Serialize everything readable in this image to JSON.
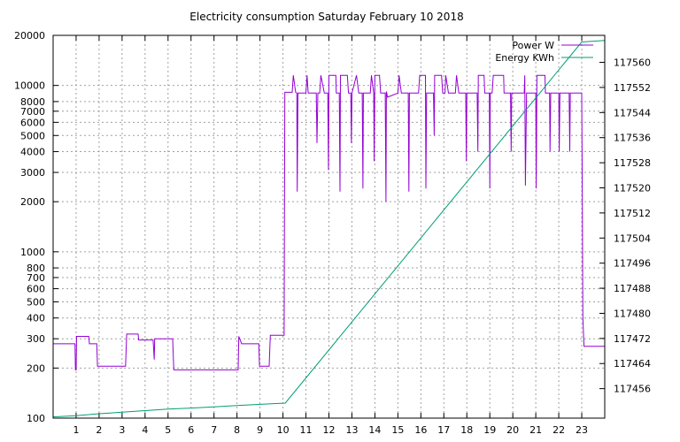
{
  "chart_data": {
    "type": "line",
    "title": "Electricity consumption Saturday February 10 2018",
    "legend": {
      "placement": "top-right"
    },
    "x_axis": {
      "range": [
        0,
        24
      ],
      "ticks": [
        1,
        2,
        3,
        4,
        5,
        6,
        7,
        8,
        9,
        10,
        11,
        12,
        13,
        14,
        15,
        16,
        17,
        18,
        19,
        20,
        21,
        22,
        23
      ],
      "grid": true
    },
    "y_axis_left": {
      "scale": "log",
      "range": [
        100,
        20000
      ],
      "ticks": [
        100,
        200,
        300,
        400,
        500,
        600,
        700,
        800,
        1000,
        2000,
        3000,
        4000,
        5000,
        6000,
        7000,
        8000,
        10000,
        20000
      ],
      "grid": true
    },
    "y_axis_right": {
      "scale": "linear",
      "range": [
        117446.6,
        117568.6
      ],
      "ticks": [
        117456,
        117464,
        117472,
        117480,
        117488,
        117496,
        117504,
        117512,
        117520,
        117528,
        117536,
        117544,
        117552,
        117560
      ]
    },
    "series": [
      {
        "name": "Power W",
        "axis": "left",
        "color": "#9400d3",
        "points": [
          [
            0,
            280
          ],
          [
            0.95,
            280
          ],
          [
            0.97,
            195
          ],
          [
            1.0,
            195
          ],
          [
            1.02,
            310
          ],
          [
            1.55,
            310
          ],
          [
            1.58,
            280
          ],
          [
            1.9,
            280
          ],
          [
            1.93,
            205
          ],
          [
            3.15,
            205
          ],
          [
            3.2,
            320
          ],
          [
            3.7,
            320
          ],
          [
            3.72,
            295
          ],
          [
            4.35,
            295
          ],
          [
            4.4,
            225
          ],
          [
            4.42,
            300
          ],
          [
            5.2,
            300
          ],
          [
            5.25,
            195
          ],
          [
            8.05,
            195
          ],
          [
            8.08,
            310
          ],
          [
            8.2,
            280
          ],
          [
            8.95,
            280
          ],
          [
            8.98,
            205
          ],
          [
            9.4,
            205
          ],
          [
            9.45,
            315
          ],
          [
            10.05,
            315
          ],
          [
            10.08,
            9100
          ],
          [
            10.4,
            9100
          ],
          [
            10.45,
            11500
          ],
          [
            10.55,
            9100
          ],
          [
            10.6,
            9000
          ],
          [
            10.62,
            2300
          ],
          [
            10.65,
            9000
          ],
          [
            11.0,
            9000
          ],
          [
            11.05,
            11500
          ],
          [
            11.1,
            9000
          ],
          [
            11.45,
            9000
          ],
          [
            11.48,
            4500
          ],
          [
            11.52,
            9000
          ],
          [
            11.6,
            9000
          ],
          [
            11.65,
            11500
          ],
          [
            11.8,
            9000
          ],
          [
            11.95,
            9000
          ],
          [
            11.98,
            3100
          ],
          [
            12.0,
            11500
          ],
          [
            12.3,
            11500
          ],
          [
            12.32,
            9000
          ],
          [
            12.45,
            9000
          ],
          [
            12.48,
            2300
          ],
          [
            12.5,
            11500
          ],
          [
            12.8,
            11500
          ],
          [
            12.85,
            9000
          ],
          [
            12.95,
            9000
          ],
          [
            12.98,
            4500
          ],
          [
            13.0,
            9000
          ],
          [
            13.2,
            11500
          ],
          [
            13.3,
            9000
          ],
          [
            13.45,
            9000
          ],
          [
            13.48,
            2400
          ],
          [
            13.5,
            9000
          ],
          [
            13.8,
            9000
          ],
          [
            13.85,
            11500
          ],
          [
            13.95,
            9000
          ],
          [
            13.97,
            3500
          ],
          [
            14.0,
            11500
          ],
          [
            14.2,
            11500
          ],
          [
            14.25,
            9000
          ],
          [
            14.45,
            9000
          ],
          [
            14.48,
            2000
          ],
          [
            14.5,
            9200
          ],
          [
            14.55,
            8500
          ],
          [
            15.0,
            9000
          ],
          [
            15.05,
            11500
          ],
          [
            15.15,
            9000
          ],
          [
            15.45,
            9000
          ],
          [
            15.48,
            2300
          ],
          [
            15.5,
            9000
          ],
          [
            15.9,
            9000
          ],
          [
            15.95,
            11500
          ],
          [
            16.2,
            11500
          ],
          [
            16.22,
            2400
          ],
          [
            16.25,
            9000
          ],
          [
            16.55,
            9000
          ],
          [
            16.58,
            5000
          ],
          [
            16.6,
            11500
          ],
          [
            16.9,
            11500
          ],
          [
            16.95,
            9000
          ],
          [
            17.05,
            9000
          ],
          [
            17.08,
            11500
          ],
          [
            17.2,
            9000
          ],
          [
            17.5,
            9000
          ],
          [
            17.55,
            11500
          ],
          [
            17.65,
            9000
          ],
          [
            17.95,
            9000
          ],
          [
            17.98,
            3500
          ],
          [
            18.0,
            9000
          ],
          [
            18.45,
            9000
          ],
          [
            18.48,
            4000
          ],
          [
            18.5,
            11500
          ],
          [
            18.75,
            11500
          ],
          [
            18.78,
            9000
          ],
          [
            18.98,
            9000
          ],
          [
            19.0,
            2400
          ],
          [
            19.02,
            9000
          ],
          [
            19.1,
            9000
          ],
          [
            19.15,
            11500
          ],
          [
            19.6,
            11500
          ],
          [
            19.62,
            9000
          ],
          [
            19.9,
            9000
          ],
          [
            19.93,
            4000
          ],
          [
            19.95,
            9000
          ],
          [
            20.5,
            9000
          ],
          [
            20.52,
            11500
          ],
          [
            20.55,
            2500
          ],
          [
            20.6,
            9000
          ],
          [
            21.0,
            9000
          ],
          [
            21.02,
            2400
          ],
          [
            21.05,
            11500
          ],
          [
            21.4,
            11500
          ],
          [
            21.42,
            9000
          ],
          [
            21.6,
            9000
          ],
          [
            21.62,
            4000
          ],
          [
            21.65,
            9000
          ],
          [
            22.0,
            9000
          ],
          [
            22.02,
            4000
          ],
          [
            22.05,
            9000
          ],
          [
            22.45,
            9000
          ],
          [
            22.48,
            4000
          ],
          [
            22.5,
            9000
          ],
          [
            23.0,
            9000
          ],
          [
            23.02,
            2500
          ],
          [
            23.05,
            400
          ],
          [
            23.1,
            270
          ],
          [
            24,
            270
          ]
        ]
      },
      {
        "name": "Energy KWh",
        "axis": "right",
        "color": "#009e73",
        "points": [
          [
            0,
            117447
          ],
          [
            1,
            117447.4
          ],
          [
            2,
            117448
          ],
          [
            3,
            117448.5
          ],
          [
            4,
            117449
          ],
          [
            5,
            117449.5
          ],
          [
            6,
            117449.8
          ],
          [
            7,
            117450.2
          ],
          [
            8,
            117450.6
          ],
          [
            9,
            117451
          ],
          [
            10.1,
            117451.4
          ],
          [
            23,
            117566.5
          ],
          [
            24,
            117567
          ]
        ]
      }
    ]
  }
}
